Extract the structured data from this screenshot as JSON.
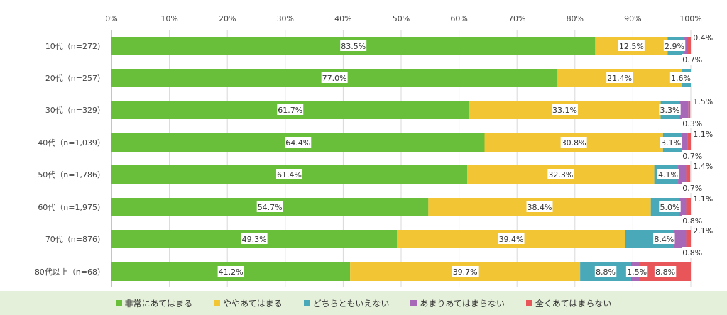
{
  "chart_data": {
    "type": "bar",
    "orientation": "horizontal",
    "stacked": true,
    "xlim": [
      0,
      100
    ],
    "x_ticks": [
      "0%",
      "10%",
      "20%",
      "30%",
      "40%",
      "50%",
      "60%",
      "70%",
      "80%",
      "90%",
      "100%"
    ],
    "grid": true,
    "legend_position": "bottom",
    "categories": [
      "10代（n=272）",
      "20代（n=257）",
      "30代（n=329）",
      "40代（n=1,039）",
      "50代（n=1,786）",
      "60代（n=1,975）",
      "70代（n=876）",
      "80代以上（n=68）"
    ],
    "series": [
      {
        "name": "非常にあてはまる",
        "color": "#6abf3a",
        "values": [
          83.5,
          77.0,
          61.7,
          64.4,
          61.4,
          54.7,
          49.3,
          41.2
        ],
        "labels": [
          "83.5%",
          "77.0%",
          "61.7%",
          "64.4%",
          "61.4%",
          "54.7%",
          "49.3%",
          "41.2%"
        ]
      },
      {
        "name": "ややあてはまる",
        "color": "#f2c534",
        "values": [
          12.5,
          21.4,
          33.1,
          30.8,
          32.3,
          38.4,
          39.4,
          39.7
        ],
        "labels": [
          "12.5%",
          "21.4%",
          "33.1%",
          "30.8%",
          "32.3%",
          "38.4%",
          "39.4%",
          "39.7%"
        ]
      },
      {
        "name": "どちらともいえない",
        "color": "#4aa9b8",
        "values": [
          2.9,
          1.6,
          3.3,
          3.1,
          4.1,
          5.0,
          8.4,
          8.8
        ],
        "labels": [
          "2.9%",
          "1.6%",
          "3.3%",
          "3.1%",
          "4.1%",
          "5.0%",
          "8.4%",
          "8.8%"
        ]
      },
      {
        "name": "あまりあてはまらない",
        "color": "#a868b8",
        "values": [
          0.4,
          0,
          1.5,
          1.1,
          1.4,
          1.1,
          2.1,
          1.5
        ],
        "labels": [
          "0.4%",
          "",
          "1.5%",
          "1.1%",
          "1.4%",
          "1.1%",
          "2.1%",
          "1.5%"
        ]
      },
      {
        "name": "全くあてはまらない",
        "color": "#e8565a",
        "values": [
          0.7,
          0,
          0.3,
          0.7,
          0.7,
          0.8,
          0.8,
          8.8
        ],
        "labels": [
          "0.7%",
          "",
          "0.3%",
          "0.7%",
          "0.7%",
          "0.8%",
          "0.8%",
          "8.8%"
        ]
      }
    ]
  }
}
